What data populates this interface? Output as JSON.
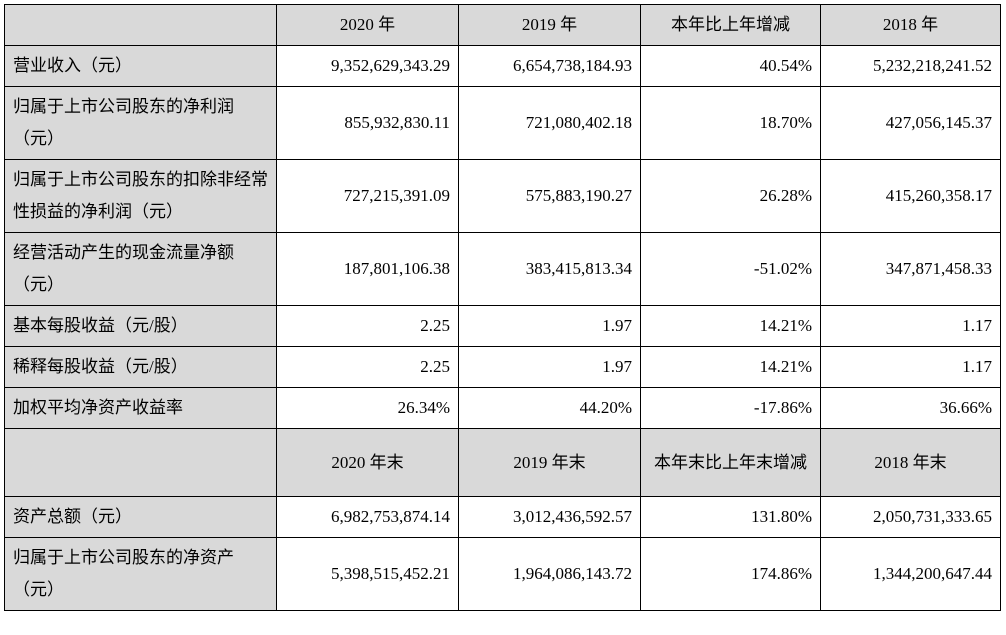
{
  "sections": [
    {
      "columns": [
        "2020 年",
        "2019 年",
        "本年比上年增减",
        "2018 年"
      ],
      "rows": [
        [
          "营业收入（元）",
          "9,352,629,343.29",
          "6,654,738,184.93",
          "40.54%",
          "5,232,218,241.52"
        ],
        [
          "归属于上市公司股东的净利润（元）",
          "855,932,830.11",
          "721,080,402.18",
          "18.70%",
          "427,056,145.37"
        ],
        [
          "归属于上市公司股东的扣除非经常性损益的净利润（元）",
          "727,215,391.09",
          "575,883,190.27",
          "26.28%",
          "415,260,358.17"
        ],
        [
          "经营活动产生的现金流量净额（元）",
          "187,801,106.38",
          "383,415,813.34",
          "-51.02%",
          "347,871,458.33"
        ],
        [
          "基本每股收益（元/股）",
          "2.25",
          "1.97",
          "14.21%",
          "1.17"
        ],
        [
          "稀释每股收益（元/股）",
          "2.25",
          "1.97",
          "14.21%",
          "1.17"
        ],
        [
          "加权平均净资产收益率",
          "26.34%",
          "44.20%",
          "-17.86%",
          "36.66%"
        ]
      ]
    },
    {
      "columns": [
        "2020 年末",
        "2019 年末",
        "本年末比上年末增减",
        "2018 年末"
      ],
      "rows": [
        [
          "资产总额（元）",
          "6,982,753,874.14",
          "3,012,436,592.57",
          "131.80%",
          "2,050,731,333.65"
        ],
        [
          "归属于上市公司股东的净资产（元）",
          "5,398,515,452.21",
          "1,964,086,143.72",
          "174.86%",
          "1,344,200,647.44"
        ]
      ]
    }
  ]
}
